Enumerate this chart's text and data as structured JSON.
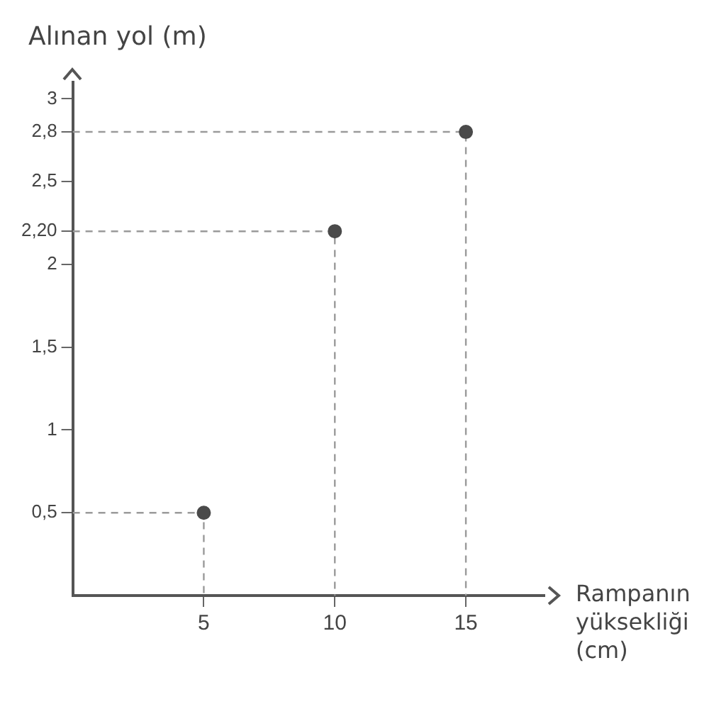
{
  "chart_data": {
    "type": "scatter",
    "xlabel": "Rampanın yüksekliği (cm)",
    "ylabel": "Alınan yol (m)",
    "x": [
      5,
      10,
      15
    ],
    "series": [
      {
        "marker": "circle",
        "color": "#4a4a4a",
        "values": [
          0.5,
          2.2,
          2.8
        ]
      },
      {
        "type": "line",
        "marker": "none",
        "line_style": "dashed",
        "color": "#9a9a9a",
        "x": [
          0,
          5,
          5
        ],
        "values": [
          0.5,
          0.5,
          0
        ]
      },
      {
        "type": "line",
        "marker": "none",
        "line_style": "dashed",
        "color": "#9a9a9a",
        "x": [
          0,
          10,
          10
        ],
        "values": [
          2.2,
          2.2,
          0
        ]
      },
      {
        "type": "line",
        "marker": "none",
        "line_style": "dashed",
        "color": "#9a9a9a",
        "x": [
          0,
          15,
          15
        ],
        "values": [
          2.8,
          2.8,
          0
        ]
      }
    ],
    "xlim": [
      0,
      18
    ],
    "xticks": [
      5,
      10,
      15
    ],
    "ylim": [
      0,
      3.1
    ],
    "yticks": [
      {
        "value": 0.5,
        "label": "0,5"
      },
      1,
      {
        "value": 1.5,
        "label": "1,5"
      },
      2,
      {
        "value": 2.2,
        "label": "2,20"
      },
      {
        "value": 2.5,
        "label": "2,5"
      },
      {
        "value": 2.8,
        "label": "2,8"
      },
      3
    ],
    "grid": false,
    "legend": false
  }
}
